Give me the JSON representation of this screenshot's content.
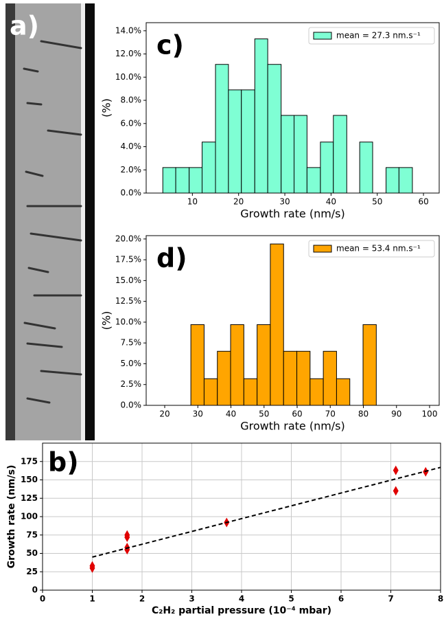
{
  "chart_data": [
    {
      "type": "image",
      "panel_label": "a)"
    },
    {
      "type": "scatter",
      "panel_label": "b)",
      "xlabel": "C₂H₂ partial pressure (10⁻⁴ mbar)",
      "ylabel": "Growth rate (nm/s)",
      "xlim": [
        0,
        8
      ],
      "ylim": [
        0,
        200
      ],
      "xticks": [
        0,
        1,
        2,
        3,
        4,
        5,
        6,
        7,
        8
      ],
      "yticks": [
        0,
        25,
        50,
        75,
        100,
        125,
        150,
        175
      ],
      "grid": true,
      "series": [
        {
          "kind": "scatter",
          "color": "#e00000",
          "x": [
            1,
            1,
            1.7,
            1.7,
            1.7,
            1.7,
            3.7,
            7.1,
            7.1,
            7.7
          ],
          "values": [
            33,
            30,
            75,
            72,
            58,
            55,
            92,
            163,
            135,
            161
          ]
        },
        {
          "kind": "line",
          "color": "#000000",
          "linestyle": "dashed",
          "x": [
            1,
            8
          ],
          "values": [
            45,
            167
          ]
        }
      ]
    },
    {
      "type": "histogram",
      "panel_label": "c)",
      "xlabel": "Growth rate (nm/s)",
      "ylabel": "(%)",
      "xlim": [
        0,
        63.4
      ],
      "ylim": [
        0,
        14.7
      ],
      "xticks": [
        10,
        20,
        30,
        40,
        50,
        60
      ],
      "yticks": [
        {
          "value": 0,
          "label": "0.0%"
        },
        {
          "value": 2,
          "label": "2.0%"
        },
        {
          "value": 4,
          "label": "4.0%"
        },
        {
          "value": 6,
          "label": "6.0%"
        },
        {
          "value": 8,
          "label": "8.0%"
        },
        {
          "value": 10,
          "label": "10.0%"
        },
        {
          "value": 12,
          "label": "12.0%"
        },
        {
          "value": 14,
          "label": "14.0%"
        }
      ],
      "legend": "upper right",
      "series": [
        {
          "name": "mean = 27.3 nm.s⁻¹",
          "color": "#7fffd4",
          "bins": [
            3.6,
            6.4,
            9.3,
            12.1,
            15.0,
            17.8,
            20.6,
            23.5,
            26.3,
            29.2,
            32.0,
            34.8,
            37.7,
            40.5,
            43.4,
            46.2,
            49.0,
            51.9,
            54.7,
            57.6
          ],
          "values": [
            2.2,
            2.2,
            2.2,
            4.4,
            11.1,
            8.9,
            8.9,
            13.3,
            11.1,
            6.7,
            6.7,
            2.2,
            4.4,
            6.7,
            0,
            4.4,
            0,
            2.2,
            2.2
          ]
        }
      ]
    },
    {
      "type": "histogram",
      "panel_label": "d)",
      "xlabel": "Growth rate (nm/s)",
      "ylabel": "(%)",
      "xlim": [
        14.4,
        102.9
      ],
      "ylim": [
        0,
        20.4
      ],
      "xticks": [
        20,
        30,
        40,
        50,
        60,
        70,
        80,
        90,
        100
      ],
      "yticks": [
        {
          "value": 0,
          "label": "0.0%"
        },
        {
          "value": 2.5,
          "label": "2.5%"
        },
        {
          "value": 5,
          "label": "5.0%"
        },
        {
          "value": 7.5,
          "label": "7.5%"
        },
        {
          "value": 10,
          "label": "10.0%"
        },
        {
          "value": 12.5,
          "label": "12.5%"
        },
        {
          "value": 15,
          "label": "15.0%"
        },
        {
          "value": 17.5,
          "label": "17.5%"
        },
        {
          "value": 20,
          "label": "20.0%"
        }
      ],
      "legend": "upper right",
      "series": [
        {
          "name": "mean = 53.4 nm.s⁻¹",
          "color": "#ffa500",
          "bins": [
            27.9,
            31.9,
            35.9,
            39.9,
            43.9,
            47.9,
            51.9,
            55.9,
            59.9,
            63.9,
            67.9,
            71.9,
            75.9,
            79.9,
            83.9
          ],
          "values": [
            9.7,
            3.2,
            6.5,
            9.7,
            3.2,
            9.7,
            19.4,
            6.5,
            6.5,
            3.2,
            6.5,
            3.2,
            0,
            9.7
          ]
        }
      ]
    }
  ]
}
